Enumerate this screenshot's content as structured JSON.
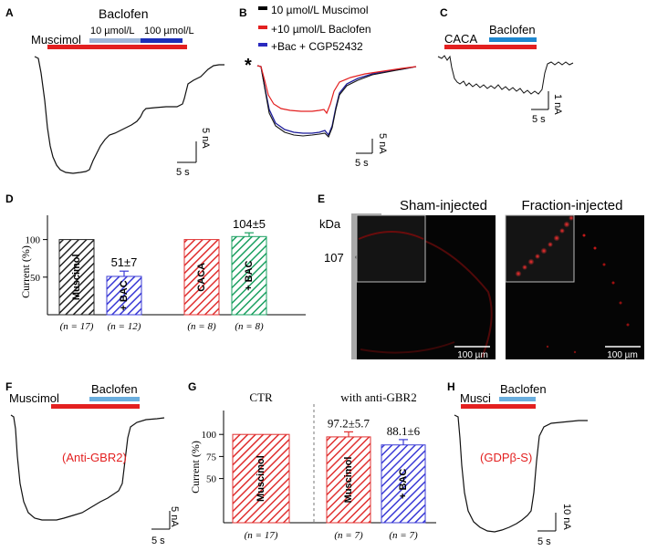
{
  "panels": {
    "A": {
      "letter": "A",
      "title": "Baclofen",
      "drug1": "Muscimol",
      "conc1": "10 µmol/L",
      "conc2": "100 µmol/L",
      "scale_y": "5 nA",
      "scale_x": "5 s"
    },
    "B": {
      "letter": "B",
      "legend": [
        "10 µmol/L Muscimol",
        "+10 µmol/L Baclofen",
        "+Bac + CGP52432"
      ],
      "legend_colors": [
        "#000000",
        "#e32020",
        "#2a2abf"
      ],
      "asterisk": "*",
      "scale_y": "5 nA",
      "scale_x": "5 s"
    },
    "C": {
      "letter": "C",
      "drug1": "CACA",
      "drug2": "Baclofen",
      "scale_y": "1 nA",
      "scale_x": "5 s"
    },
    "D": {
      "letter": "D",
      "ylabel": "Current (%)",
      "yticks": [
        "100",
        "50"
      ],
      "bar_labels": [
        "Muscimol",
        "+ BAC",
        "CACA",
        "+ BAC"
      ],
      "annotations": [
        "51±7",
        "104±5"
      ],
      "n_labels": [
        "(n = 17)",
        "(n = 12)",
        "(n = 8)",
        "(n = 8)"
      ]
    },
    "E": {
      "letter": "E",
      "kda": "kDa",
      "marker": "107",
      "left_title": "Sham-injected",
      "right_title": "Fraction-injected",
      "scale_left": "100 µm",
      "scale_right": "100 µm"
    },
    "F": {
      "letter": "F",
      "drug1": "Muscimol",
      "drug2": "Baclofen",
      "condition": "(Anti-GBR2)",
      "scale_y": "5 nA",
      "scale_x": "5 s"
    },
    "G": {
      "letter": "G",
      "group1": "CTR",
      "group2": "with anti-GBR2",
      "ylabel": "Current (%)",
      "yticks": [
        "100",
        "75",
        "50"
      ],
      "bar_labels": [
        "Muscimol",
        "Muscimol",
        "+ BAC"
      ],
      "annotations": [
        "97.2±5.7",
        "88.1±6"
      ],
      "n_labels": [
        "(n = 17)",
        "(n = 7)",
        "(n = 7)"
      ]
    },
    "H": {
      "letter": "H",
      "drug1": "Musci",
      "drug2": "Baclofen",
      "condition": "(GDPβ-S)",
      "scale_y": "10 nA",
      "scale_x": "5 s"
    }
  },
  "chart_data": [
    {
      "type": "bar",
      "panel": "D",
      "categories": [
        "Muscimol",
        "+ BAC",
        "CACA",
        "+ BAC"
      ],
      "values": [
        100,
        51,
        100,
        104
      ],
      "errors": [
        0,
        7,
        0,
        5
      ],
      "ylabel": "Current (%)",
      "ylim": [
        0,
        125
      ],
      "colors": [
        "#222222",
        "#3b3bd6",
        "#e03030",
        "#1aa060"
      ]
    },
    {
      "type": "bar",
      "panel": "G",
      "categories": [
        "Muscimol",
        "Muscimol",
        "+ BAC"
      ],
      "values": [
        100,
        97.2,
        88.1
      ],
      "errors": [
        0,
        5.7,
        6
      ],
      "ylabel": "Current (%)",
      "ylim": [
        0,
        125
      ],
      "colors": [
        "#e03030",
        "#e03030",
        "#3b3bd6"
      ]
    }
  ]
}
